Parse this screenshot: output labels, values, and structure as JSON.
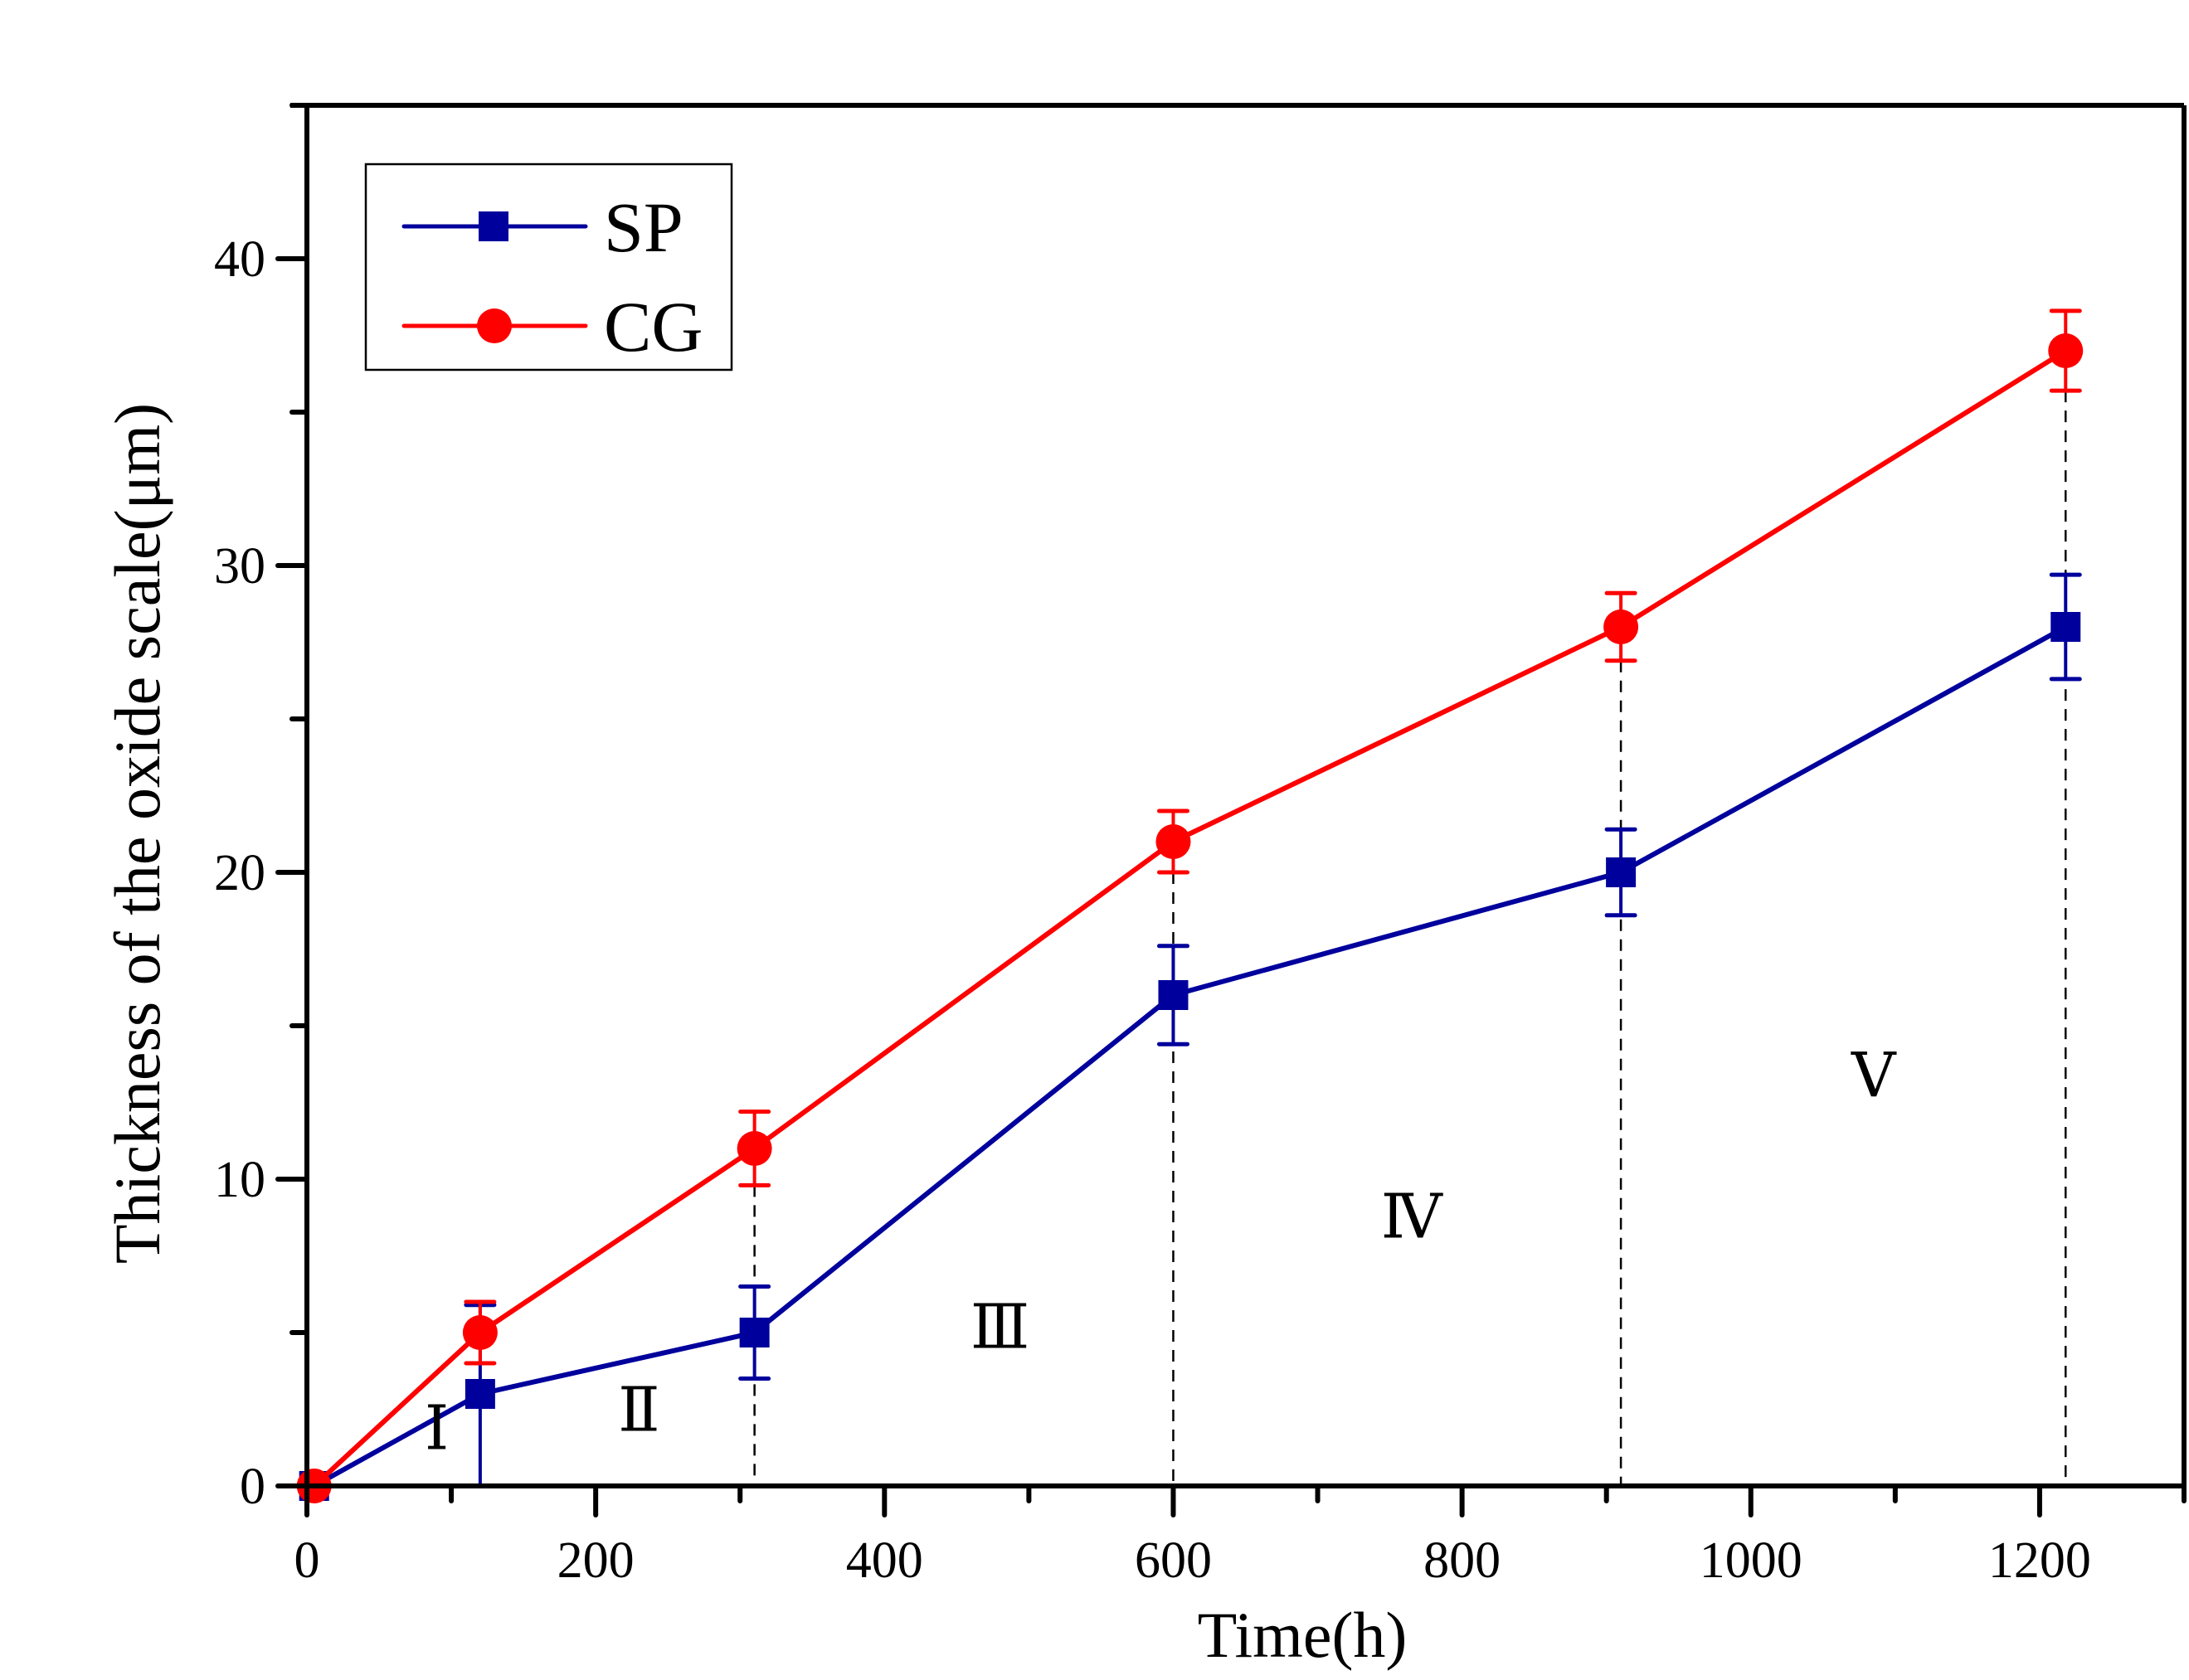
{
  "chart_data": {
    "type": "line",
    "title": "",
    "xlabel": "Time(h)",
    "ylabel": "Thickness of the oxide scale(μm)",
    "xlim": [
      0,
      1300
    ],
    "ylim": [
      0,
      45
    ],
    "x_major_ticks": [
      0,
      200,
      400,
      600,
      800,
      1000,
      1200
    ],
    "x_minor_ticks": [
      100,
      300,
      500,
      700,
      900,
      1100,
      1300
    ],
    "y_major_ticks": [
      0,
      10,
      20,
      30,
      40
    ],
    "y_minor_ticks": [
      5,
      15,
      25,
      35,
      45
    ],
    "grid": false,
    "legend_position": "top-left",
    "series": [
      {
        "name": "SP",
        "color": "#00009C",
        "marker": "square",
        "x": [
          5,
          120,
          310,
          600,
          910,
          1218
        ],
        "y": [
          0,
          3,
          5,
          16,
          20,
          28
        ],
        "err_low": [
          0,
          3.0,
          1.5,
          1.6,
          1.4,
          1.7
        ],
        "err_high": [
          0,
          2.9,
          1.5,
          1.6,
          1.4,
          1.7
        ]
      },
      {
        "name": "CG",
        "color": "#FF0000",
        "marker": "circle",
        "x": [
          5,
          120,
          310,
          600,
          910,
          1218
        ],
        "y": [
          0,
          5,
          11,
          21,
          28,
          37
        ],
        "err_low": [
          0,
          1.0,
          1.2,
          1.0,
          1.1,
          1.3
        ],
        "err_high": [
          0,
          1.0,
          1.2,
          1.0,
          1.1,
          1.3
        ]
      }
    ],
    "reference_lines": {
      "style": "dashed",
      "x": [
        310,
        600,
        910,
        1218
      ]
    },
    "region_labels": [
      {
        "text": "Ⅰ",
        "x": 90,
        "y": 1.2
      },
      {
        "text": "Ⅱ",
        "x": 230,
        "y": 1.8
      },
      {
        "text": "Ⅲ",
        "x": 480,
        "y": 4.5
      },
      {
        "text": "Ⅳ",
        "x": 765,
        "y": 8.1
      },
      {
        "text": "Ⅴ",
        "x": 1085,
        "y": 12.7
      }
    ]
  }
}
